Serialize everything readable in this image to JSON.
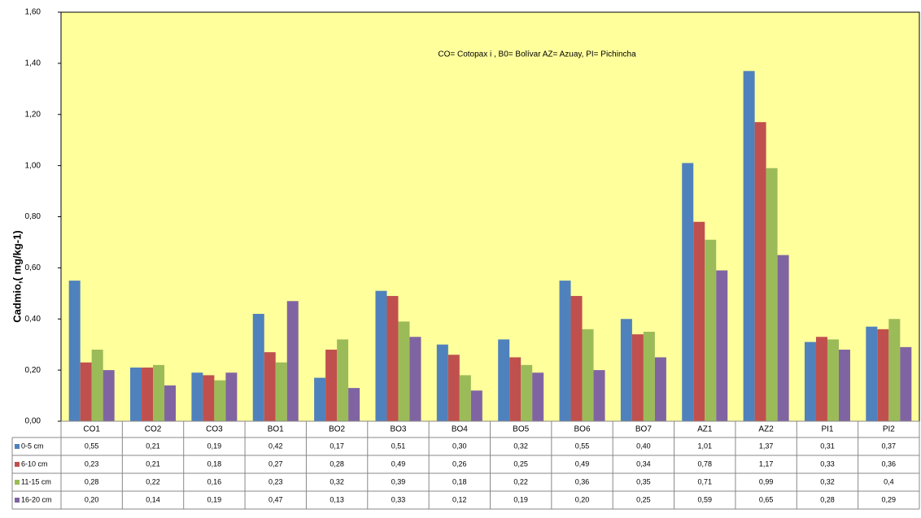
{
  "chart_data": {
    "type": "bar",
    "y_label": "Cadmio,( mg/kg-1)",
    "annotation": "CO= Cotopax i ,  B0= Bolívar AZ= Azuay,  PI= Pichincha",
    "categories": [
      "CO1",
      "CO2",
      "CO3",
      "BO1",
      "BO2",
      "BO3",
      "BO4",
      "BO5",
      "BO6",
      "BO7",
      "AZ1",
      "AZ2",
      "PI1",
      "PI2"
    ],
    "series": [
      {
        "name": "0-5 cm",
        "color": "#4f81bd",
        "values": [
          0.55,
          0.21,
          0.19,
          0.42,
          0.17,
          0.51,
          0.3,
          0.32,
          0.55,
          0.4,
          1.01,
          1.37,
          0.31,
          0.37
        ],
        "value_labels": [
          "0,55",
          "0,21",
          "0,19",
          "0,42",
          "0,17",
          "0,51",
          "0,30",
          "0,32",
          "0,55",
          "0,40",
          "1,01",
          "1,37",
          "0,31",
          "0,37"
        ]
      },
      {
        "name": "6-10 cm",
        "color": "#c0504d",
        "values": [
          0.23,
          0.21,
          0.18,
          0.27,
          0.28,
          0.49,
          0.26,
          0.25,
          0.49,
          0.34,
          0.78,
          1.17,
          0.33,
          0.36
        ],
        "value_labels": [
          "0,23",
          "0,21",
          "0,18",
          "0,27",
          "0,28",
          "0,49",
          "0,26",
          "0,25",
          "0,49",
          "0,34",
          "0,78",
          "1,17",
          "0,33",
          "0,36"
        ]
      },
      {
        "name": "11-15 cm",
        "color": "#9bbb59",
        "values": [
          0.28,
          0.22,
          0.16,
          0.23,
          0.32,
          0.39,
          0.18,
          0.22,
          0.36,
          0.35,
          0.71,
          0.99,
          0.32,
          0.4
        ],
        "value_labels": [
          "0,28",
          "0,22",
          "0,16",
          "0,23",
          "0,32",
          "0,39",
          "0,18",
          "0,22",
          "0,36",
          "0,35",
          "0,71",
          "0,99",
          "0,32",
          "0,4"
        ]
      },
      {
        "name": "16-20 cm",
        "color": "#8064a2",
        "values": [
          0.2,
          0.14,
          0.19,
          0.47,
          0.13,
          0.33,
          0.12,
          0.19,
          0.2,
          0.25,
          0.59,
          0.65,
          0.28,
          0.29
        ],
        "value_labels": [
          "0,20",
          "0,14",
          "0,19",
          "0,47",
          "0,13",
          "0,33",
          "0,12",
          "0,19",
          "0,20",
          "0,25",
          "0,59",
          "0,65",
          "0,28",
          "0,29"
        ]
      }
    ],
    "ylim": [
      0,
      1.6
    ],
    "yticks": [
      {
        "value": 0,
        "label": "0,00"
      },
      {
        "value": 0.2,
        "label": "0,20"
      },
      {
        "value": 0.4,
        "label": "0,40"
      },
      {
        "value": 0.6,
        "label": "0,60"
      },
      {
        "value": 0.8,
        "label": "0,80"
      },
      {
        "value": 1.0,
        "label": "1,00"
      },
      {
        "value": 1.2,
        "label": "1,20"
      },
      {
        "value": 1.4,
        "label": "1,40"
      },
      {
        "value": 1.6,
        "label": "1,60"
      }
    ],
    "plot_background": "#ffff9c"
  }
}
